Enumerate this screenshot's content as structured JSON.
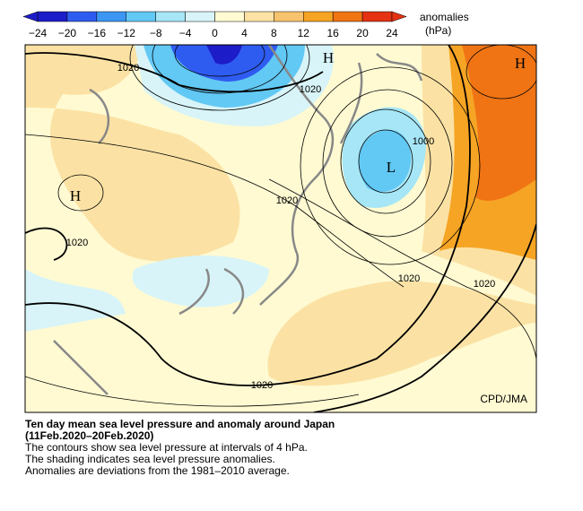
{
  "colorbar": {
    "ticks": [
      "−24",
      "−20",
      "−16",
      "−12",
      "−8",
      "−4",
      "0",
      "4",
      "8",
      "12",
      "16",
      "20",
      "24"
    ],
    "colors": [
      "#1c1cc8",
      "#2f5cf0",
      "#3c96f2",
      "#62c8f4",
      "#a6e6f6",
      "#d8f4f8",
      "#fffad2",
      "#fbe2a4",
      "#f8c36e",
      "#f6a424",
      "#f07414",
      "#e43212"
    ],
    "label": [
      "anomalies",
      "(hPa)"
    ]
  },
  "map": {
    "contour_labels": [
      "1020",
      "1020",
      "1000",
      "1020",
      "1020",
      "1020",
      "1020",
      "1020"
    ],
    "pressure_centers": [
      "H",
      "H",
      "H",
      "L"
    ],
    "credit": "CPD/JMA"
  },
  "caption": {
    "title": [
      "Ten day mean sea level pressure and anomaly around Japan",
      "(11Feb.2020–20Feb.2020)"
    ],
    "lines": [
      "The contours show sea level pressure at intervals of 4 hPa.",
      "The shading indicates sea level pressure anomalies.",
      "Anomalies are deviations from the 1981–2010 average."
    ]
  }
}
